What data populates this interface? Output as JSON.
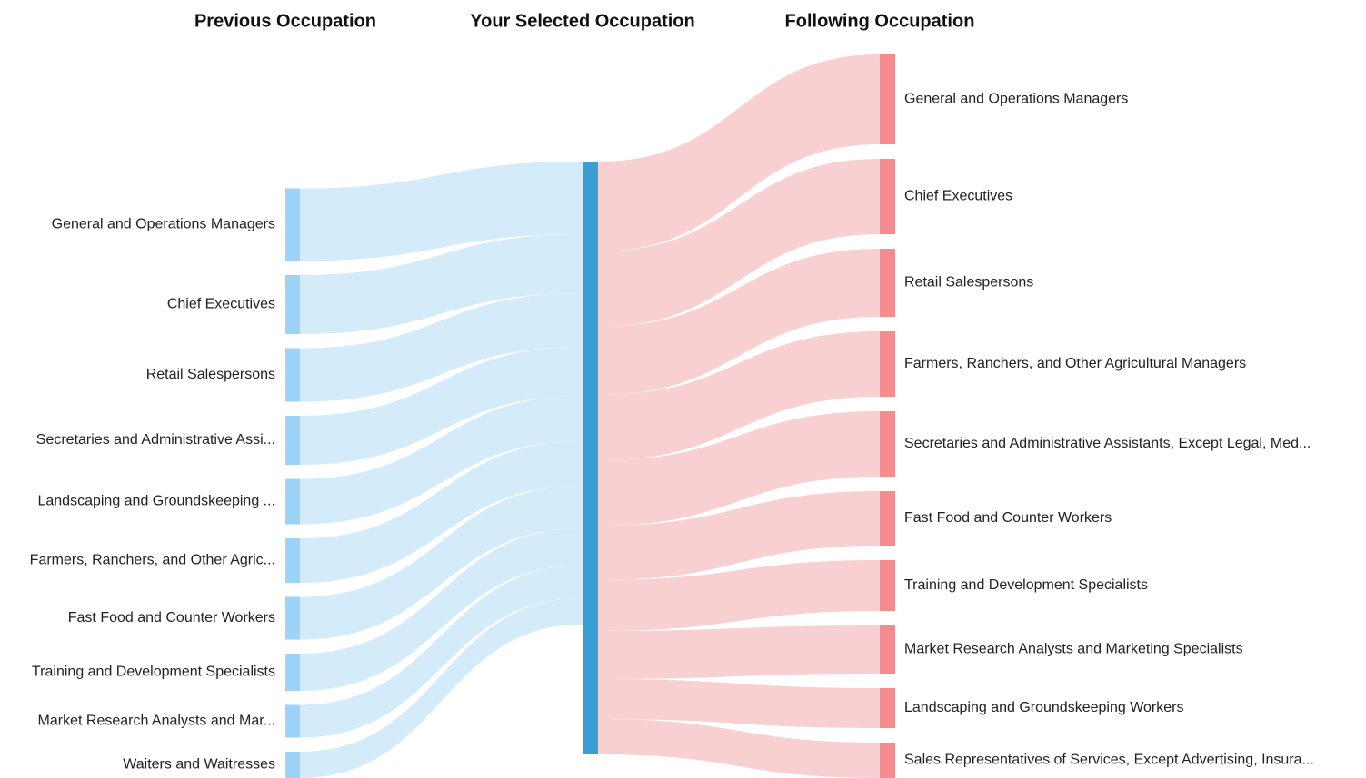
{
  "chart_data": {
    "type": "sankey",
    "source_header": "Previous Occupation",
    "center_header": "Your Selected Occupation",
    "target_header": "Following Occupation",
    "sources": {
      "names": [
        "General and Operations Managers",
        "Chief Executives",
        "Retail Salespersons",
        "Secretaries and Administrative Assi...",
        "Landscaping and Groundskeeping ...",
        "Farmers, Ranchers, and Other Agric...",
        "Fast Food and Counter Workers",
        "Training and Development Specialists",
        "Market Research Analysts and Mar...",
        "Waiters and Waitresses"
      ],
      "values": [
        80,
        65,
        59,
        54,
        50,
        49,
        47,
        41,
        36,
        29
      ]
    },
    "targets": {
      "names": [
        "General and Operations Managers",
        "Chief Executives",
        "Retail Salespersons",
        "Farmers, Ranchers, and Other Agricultural Managers",
        "Secretaries and Administrative Assistants, Except Legal, Med...",
        "Fast Food and Counter Workers",
        "Training and Development Specialists",
        "Market Research Analysts and Marketing Specialists",
        "Landscaping and Groundskeeping Workers",
        "Sales Representatives of Services, Except Advertising, Insura..."
      ],
      "values": [
        99,
        83,
        75,
        72,
        72,
        60,
        56,
        53,
        44,
        39
      ]
    },
    "source_color": "#9dd3f7",
    "source_flow_color": "#d2eafa",
    "center_color": "#3a9fd4",
    "target_color": "#f48c8f",
    "target_flow_color": "#f8cdcf"
  }
}
